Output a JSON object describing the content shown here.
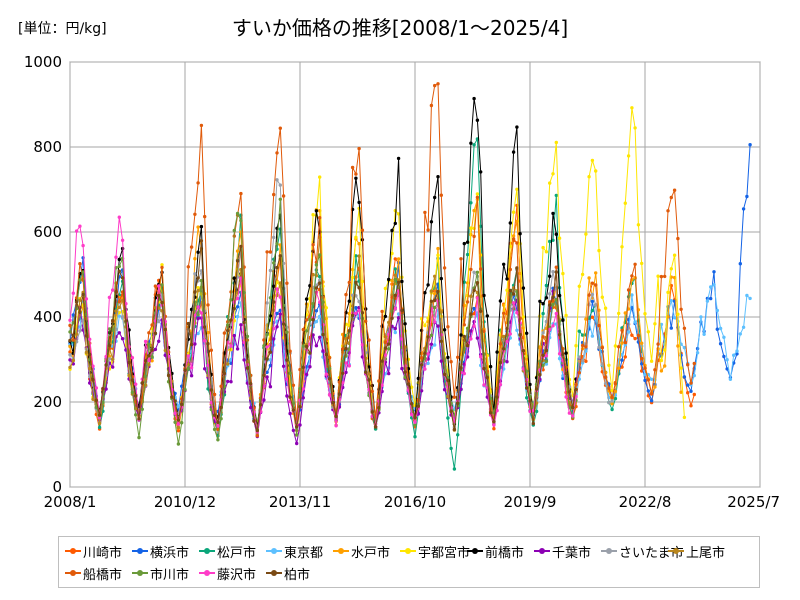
{
  "header": {
    "unit": "[単位：円/kg]"
  },
  "chart_data": {
    "type": "line",
    "title": "すいか価格の推移[2008/1〜2025/4]",
    "ylim": [
      0,
      1000
    ],
    "yticks": [
      0,
      200,
      400,
      600,
      800,
      1000
    ],
    "xlim": [
      "2008-01",
      "2025-07"
    ],
    "xticks": [
      "2008/1",
      "2010/12",
      "2013/11",
      "2016/10",
      "2019/9",
      "2022/8",
      "2025/7"
    ],
    "grid": true,
    "legend": "bottom",
    "series": [
      {
        "name": "川崎市",
        "color": "#ff5a00",
        "peaks": [
          470,
          480,
          470,
          440,
          540,
          560,
          470,
          500,
          520,
          450,
          470,
          640,
          420,
          420,
          380,
          460,
          560,
          0
        ],
        "troughs": [
          110,
          150,
          120,
          100,
          90,
          100,
          140,
          110,
          130,
          140,
          120,
          140,
          150,
          190,
          200,
          170,
          190,
          0
        ],
        "start": 2008,
        "end": 2023.9
      },
      {
        "name": "横浜市",
        "color": "#1463e6",
        "peaks": [
          540,
          470,
          440,
          430,
          420,
          400,
          430,
          430,
          480,
          460,
          450,
          450,
          440,
          430,
          420,
          420,
          480,
          830
        ],
        "troughs": [
          150,
          170,
          160,
          150,
          130,
          140,
          160,
          150,
          160,
          140,
          150,
          160,
          150,
          190,
          210,
          230,
          250,
          270
        ],
        "start": 2008,
        "end": 2025.3
      },
      {
        "name": "松戸市",
        "color": "#0aa67a",
        "peaks": [
          450,
          470,
          460,
          420,
          600,
          620,
          520,
          520,
          500,
          500,
          820,
          480,
          640,
          460,
          500,
          420,
          0,
          0
        ],
        "troughs": [
          130,
          150,
          130,
          110,
          100,
          110,
          130,
          120,
          110,
          20,
          110,
          120,
          140,
          160,
          200,
          0,
          0,
          0
        ],
        "start": 2008,
        "end": 2022.5
      },
      {
        "name": "東京都",
        "color": "#5dc0ff",
        "peaks": [
          420,
          400,
          390,
          380,
          400,
          400,
          380,
          400,
          390,
          380,
          380,
          400,
          380,
          390,
          430,
          440,
          460,
          480
        ],
        "troughs": [
          170,
          180,
          170,
          160,
          150,
          160,
          170,
          160,
          170,
          160,
          170,
          180,
          190,
          200,
          230,
          250,
          270,
          300
        ],
        "start": 2008,
        "end": 2025.3
      },
      {
        "name": "水戸市",
        "color": "#ffa000",
        "peaks": [
          460,
          480,
          440,
          590,
          560,
          540,
          640,
          560,
          520,
          520,
          640,
          600,
          480,
          500,
          490,
          480,
          0,
          0
        ],
        "troughs": [
          140,
          160,
          130,
          120,
          110,
          120,
          140,
          130,
          140,
          130,
          150,
          140,
          160,
          180,
          200,
          0,
          0,
          0
        ],
        "start": 2008,
        "end": 2023.5
      },
      {
        "name": "宇都宮市",
        "color": "#ffe600",
        "peaks": [
          430,
          410,
          480,
          460,
          490,
          480,
          680,
          600,
          680,
          520,
          660,
          680,
          820,
          770,
          870,
          590,
          0,
          0
        ],
        "troughs": [
          150,
          150,
          140,
          130,
          120,
          130,
          150,
          140,
          150,
          140,
          150,
          160,
          180,
          220,
          240,
          0,
          0,
          0
        ],
        "start": 2008,
        "end": 2023.6
      },
      {
        "name": "前橋市",
        "color": "#000000",
        "peaks": [
          480,
          550,
          490,
          560,
          510,
          590,
          640,
          710,
          710,
          720,
          930,
          780,
          610,
          0,
          0,
          0,
          0,
          0
        ],
        "troughs": [
          150,
          170,
          150,
          130,
          120,
          130,
          150,
          140,
          120,
          130,
          140,
          150,
          150,
          0,
          0,
          0,
          0,
          0
        ],
        "start": 2008,
        "end": 2020.9
      },
      {
        "name": "千葉市",
        "color": "#8c00b4",
        "peaks": [
          400,
          380,
          380,
          380,
          360,
          380,
          380,
          400,
          380,
          380,
          380,
          400,
          460,
          0,
          0,
          0,
          0,
          0
        ],
        "troughs": [
          150,
          160,
          150,
          130,
          120,
          80,
          140,
          130,
          140,
          150,
          150,
          160,
          170,
          0,
          0,
          0,
          0,
          0
        ],
        "start": 2008,
        "end": 2021.0
      },
      {
        "name": "さいたま市",
        "color": "#9aa0aa",
        "peaks": [
          420,
          420,
          440,
          520,
          520,
          720,
          500,
          480,
          480,
          460,
          480,
          480,
          480,
          430,
          0,
          0,
          0,
          0
        ],
        "troughs": [
          150,
          160,
          150,
          120,
          110,
          120,
          150,
          140,
          150,
          140,
          150,
          160,
          170,
          180,
          0,
          0,
          0,
          0
        ],
        "start": 2008,
        "end": 2021.8
      },
      {
        "name": "上尾市",
        "color": "#b9861e",
        "peaks": [
          430,
          440,
          450,
          480,
          470,
          480,
          540,
          520,
          500,
          480,
          500,
          480,
          470,
          0,
          0,
          0,
          0,
          0
        ],
        "troughs": [
          140,
          150,
          140,
          120,
          110,
          120,
          140,
          130,
          140,
          130,
          140,
          150,
          160,
          0,
          0,
          0,
          0,
          0
        ],
        "start": 2008,
        "end": 2020.9
      },
      {
        "name": "船橋市",
        "color": "#e05a0a",
        "peaks": [
          520,
          500,
          500,
          810,
          650,
          860,
          600,
          800,
          500,
          1000,
          620,
          560,
          480,
          480,
          480,
          700,
          0,
          0
        ],
        "troughs": [
          140,
          150,
          130,
          110,
          100,
          110,
          140,
          130,
          140,
          150,
          140,
          150,
          160,
          190,
          200,
          210,
          0,
          0
        ],
        "start": 2008,
        "end": 2023.9
      },
      {
        "name": "市川市",
        "color": "#6a9a3a",
        "peaks": [
          500,
          560,
          500,
          460,
          630,
          620,
          520,
          480,
          460,
          440,
          480,
          460,
          440,
          0,
          0,
          0,
          0,
          0
        ],
        "troughs": [
          150,
          100,
          80,
          90,
          100,
          110,
          140,
          130,
          140,
          150,
          150,
          160,
          160,
          0,
          0,
          0,
          0,
          0
        ],
        "start": 2008,
        "end": 2020.9
      },
      {
        "name": "藤沢市",
        "color": "#ff3cc8",
        "peaks": [
          630,
          620,
          460,
          420,
          480,
          460,
          440,
          420,
          460,
          440,
          420,
          440,
          420,
          0,
          0,
          0,
          0,
          0
        ],
        "troughs": [
          140,
          150,
          140,
          130,
          110,
          120,
          140,
          130,
          140,
          130,
          140,
          150,
          150,
          0,
          0,
          0,
          0,
          0
        ],
        "start": 2008,
        "end": 2020.9
      },
      {
        "name": "柏市",
        "color": "#7a4a14",
        "peaks": [
          460,
          490,
          440,
          540,
          530,
          500,
          480,
          480,
          480,
          460,
          480,
          470,
          460,
          0,
          0,
          0,
          0,
          0
        ],
        "troughs": [
          150,
          160,
          140,
          120,
          100,
          110,
          140,
          130,
          140,
          130,
          140,
          150,
          160,
          0,
          0,
          0,
          0,
          0
        ],
        "start": 2008,
        "end": 2020.9
      }
    ]
  }
}
